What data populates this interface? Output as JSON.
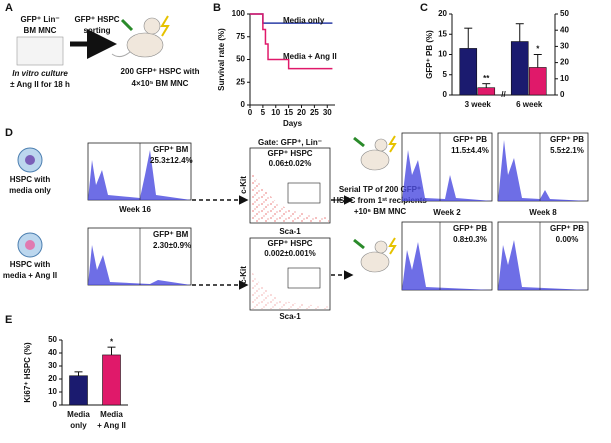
{
  "panel_labels": [
    "A",
    "B",
    "C",
    "D",
    "E"
  ],
  "panel_a": {
    "cells": [
      "GFP⁺ Lin⁻",
      "BM MNC"
    ],
    "culture": [
      "In vitro culture",
      "± Ang II for 18 h"
    ],
    "sorting": [
      "GFP⁺ HSPC",
      "sorting"
    ],
    "result": [
      "200 GFP⁺ HSPC  with",
      "4×10⁵ BM MNC"
    ]
  },
  "chart_data": [
    {
      "type": "line",
      "xlabel": "Days",
      "ylabel": "Survival rate (%)",
      "series": [
        {
          "name": "Media only",
          "color": "#2b3da6",
          "x": [
            0,
            5,
            5,
            32
          ],
          "values": [
            100,
            100,
            90,
            90
          ]
        },
        {
          "name": "Media + Ang II",
          "color": "#e0196a",
          "x": [
            0,
            5,
            5,
            6,
            6,
            7,
            7,
            15,
            15,
            32
          ],
          "values": [
            100,
            100,
            83,
            83,
            67,
            67,
            50,
            50,
            40,
            40
          ]
        }
      ],
      "xlim": [
        0,
        33
      ],
      "xticks": [
        0,
        5,
        10,
        15,
        20,
        25,
        30
      ],
      "ylim": [
        0,
        100
      ],
      "yticks": [
        0,
        25,
        50,
        75,
        100
      ]
    },
    {
      "type": "grouped-bar",
      "ylabel": "GFP⁺ PB (%)",
      "colors": [
        "#1b1b6f",
        "#e0196a"
      ],
      "groups": [
        {
          "category": "3 week",
          "axis": "y",
          "values": [
            11.5,
            1.8
          ],
          "errors": [
            5,
            1
          ],
          "annotations": [
            null,
            "**"
          ]
        },
        {
          "category": "6 week",
          "axis": "y2",
          "values": [
            33,
            17
          ],
          "errors": [
            11,
            8
          ],
          "annotations": [
            null,
            "*"
          ]
        }
      ],
      "ylim": [
        0,
        20
      ],
      "yticks": [
        0,
        5,
        10,
        15,
        20
      ],
      "y2lim": [
        0,
        50
      ],
      "y2ticks": [
        0,
        10,
        20,
        30,
        40,
        50
      ]
    },
    {
      "type": "bar",
      "ylabel": "Ki67⁺ HSPC (%)",
      "categories": [
        [
          "Media",
          "only"
        ],
        [
          "Media",
          "+ Ang II"
        ]
      ],
      "values": [
        22.5,
        38.5
      ],
      "errors": [
        3,
        6
      ],
      "annotations": [
        null,
        "*"
      ],
      "colors": [
        "#1b1b6f",
        "#e0196a"
      ],
      "ylim": [
        0,
        50
      ],
      "yticks": [
        0,
        10,
        20,
        30,
        40,
        50
      ]
    }
  ],
  "panel_d": {
    "gate": "Gate: GFP⁺, Lin⁻",
    "week16": "Week 16",
    "xaxis": "Sca-1",
    "yaxis": "c-Kit",
    "transplant": [
      "Serial TP of 200 GFP⁺",
      "HSPC from 1ˢᵗ recipients",
      "+10⁶ BM MNC"
    ],
    "weeks": [
      "Week 2",
      "Week 8"
    ],
    "rows": [
      {
        "sample": [
          "HSPC with",
          "media only"
        ],
        "bm_label": "GFP⁺ BM",
        "bm_value": "25.3±12.4%",
        "hspc_label": "GFP⁺ HSPC",
        "hspc_value": "0.06±0.02%",
        "pb": [
          {
            "label": "GFP⁺ PB",
            "value": "11.5±4.4%"
          },
          {
            "label": "GFP⁺ PB",
            "value": "5.5±2.1%"
          }
        ]
      },
      {
        "sample": [
          "HSPC with",
          "media + Ang II"
        ],
        "bm_label": "GFP⁺ BM",
        "bm_value": "2.30±0.9%",
        "hspc_label": "GFP⁺ HSPC",
        "hspc_value": "0.002±0.001%",
        "pb": [
          {
            "label": "GFP⁺ PB",
            "value": "0.8±0.3%"
          },
          {
            "label": "GFP⁺ PB",
            "value": "0.00%"
          }
        ]
      }
    ]
  }
}
